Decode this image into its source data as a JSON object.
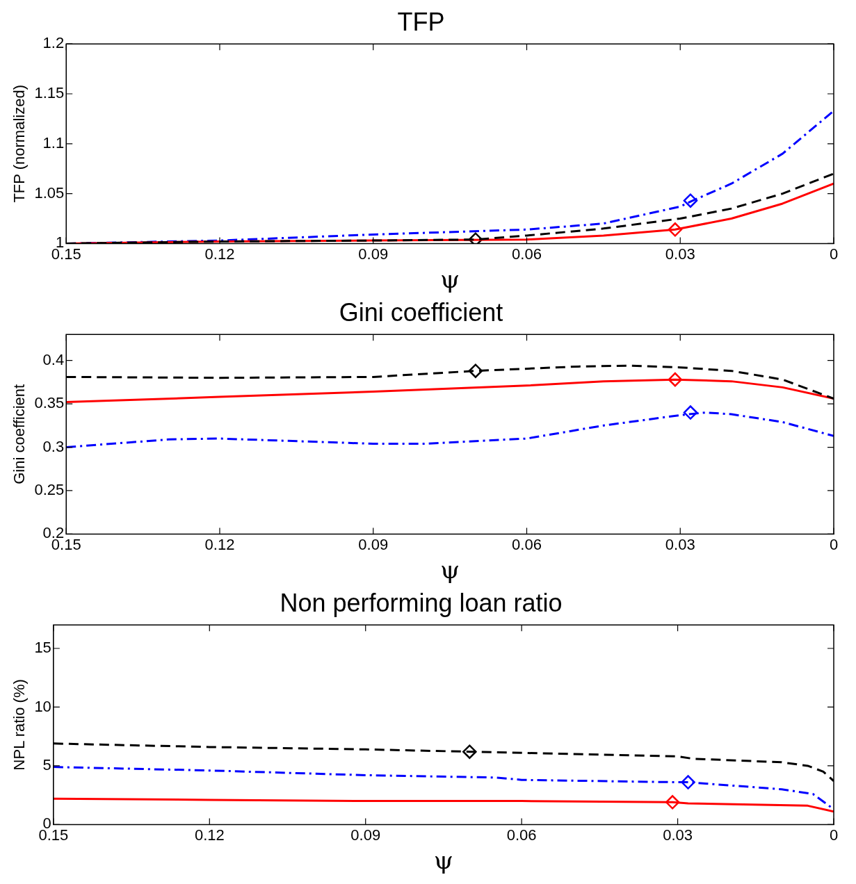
{
  "chart_data": [
    {
      "type": "line",
      "title": "TFP",
      "xlabel": "ψ",
      "ylabel": "TFP (normalized)",
      "xlim": [
        0.15,
        0
      ],
      "xticks": [
        0.15,
        0.12,
        0.09,
        0.06,
        0.03,
        0
      ],
      "ylim": [
        1,
        1.2
      ],
      "yticks": [
        1,
        1.05,
        1.1,
        1.15,
        1.2
      ],
      "grid": false,
      "legend": false,
      "series": [
        {
          "color": "#000000",
          "line_style": "dashed",
          "marker": "none",
          "x": [
            0.15,
            0.12,
            0.09,
            0.07,
            0.06,
            0.045,
            0.03,
            0.02,
            0.01,
            0
          ],
          "values": [
            1.0,
            1.002,
            1.003,
            1.004,
            1.008,
            1.015,
            1.025,
            1.035,
            1.05,
            1.07
          ]
        },
        {
          "color": "#ff0000",
          "line_style": "solid",
          "marker": "none",
          "x": [
            0.15,
            0.12,
            0.09,
            0.06,
            0.045,
            0.031,
            0.02,
            0.01,
            0
          ],
          "values": [
            1.0,
            1.002,
            1.003,
            1.004,
            1.008,
            1.014,
            1.025,
            1.04,
            1.06
          ]
        },
        {
          "color": "#0000ff",
          "line_style": "dashdot",
          "marker": "none",
          "x": [
            0.15,
            0.12,
            0.09,
            0.06,
            0.045,
            0.03,
            0.028,
            0.02,
            0.01,
            0
          ],
          "values": [
            1.0,
            1.003,
            1.009,
            1.014,
            1.02,
            1.037,
            1.042,
            1.06,
            1.09,
            1.133
          ]
        },
        {
          "type": "scatter",
          "color": "#000000",
          "marker": "diamond",
          "x": [
            0.07
          ],
          "values": [
            1.004
          ]
        },
        {
          "type": "scatter",
          "color": "#ff0000",
          "marker": "diamond",
          "x": [
            0.031
          ],
          "values": [
            1.014
          ]
        },
        {
          "type": "scatter",
          "color": "#0000ff",
          "marker": "diamond",
          "x": [
            0.028
          ],
          "values": [
            1.043
          ]
        }
      ]
    },
    {
      "type": "line",
      "title": "Gini coefficient",
      "xlabel": "ψ",
      "ylabel": "Gini coefficient",
      "xlim": [
        0.15,
        0
      ],
      "xticks": [
        0.15,
        0.12,
        0.09,
        0.06,
        0.03,
        0
      ],
      "ylim": [
        0.2,
        0.43
      ],
      "yticks": [
        0.2,
        0.25,
        0.3,
        0.35,
        0.4
      ],
      "grid": false,
      "legend": false,
      "series": [
        {
          "color": "#000000",
          "line_style": "dashed",
          "marker": "none",
          "x": [
            0.15,
            0.12,
            0.09,
            0.07,
            0.05,
            0.04,
            0.03,
            0.02,
            0.01,
            0
          ],
          "values": [
            0.381,
            0.38,
            0.381,
            0.388,
            0.393,
            0.394,
            0.392,
            0.388,
            0.378,
            0.356
          ]
        },
        {
          "color": "#ff0000",
          "line_style": "solid",
          "marker": "none",
          "x": [
            0.15,
            0.12,
            0.09,
            0.06,
            0.045,
            0.031,
            0.02,
            0.01,
            0
          ],
          "values": [
            0.352,
            0.358,
            0.364,
            0.371,
            0.376,
            0.378,
            0.376,
            0.369,
            0.356
          ]
        },
        {
          "color": "#0000ff",
          "line_style": "dashdot",
          "marker": "none",
          "x": [
            0.15,
            0.13,
            0.12,
            0.1,
            0.09,
            0.08,
            0.06,
            0.045,
            0.03,
            0.025,
            0.02,
            0.01,
            0
          ],
          "values": [
            0.3,
            0.309,
            0.31,
            0.306,
            0.304,
            0.304,
            0.31,
            0.325,
            0.337,
            0.34,
            0.338,
            0.329,
            0.313
          ]
        },
        {
          "type": "scatter",
          "color": "#000000",
          "marker": "diamond",
          "x": [
            0.07
          ],
          "values": [
            0.388
          ]
        },
        {
          "type": "scatter",
          "color": "#ff0000",
          "marker": "diamond",
          "x": [
            0.031
          ],
          "values": [
            0.378
          ]
        },
        {
          "type": "scatter",
          "color": "#0000ff",
          "marker": "diamond",
          "x": [
            0.028
          ],
          "values": [
            0.34
          ]
        }
      ]
    },
    {
      "type": "line",
      "title": "Non performing loan ratio",
      "xlabel": "ψ",
      "ylabel": "NPL ratio (%)",
      "xlim": [
        0.15,
        0
      ],
      "xticks": [
        0.15,
        0.12,
        0.09,
        0.06,
        0.03,
        0
      ],
      "ylim": [
        0,
        17
      ],
      "yticks": [
        0,
        5,
        10,
        15
      ],
      "grid": false,
      "legend": false,
      "series": [
        {
          "color": "#000000",
          "line_style": "dashed",
          "marker": "none",
          "x": [
            0.15,
            0.12,
            0.09,
            0.07,
            0.06,
            0.03,
            0.027,
            0.01,
            0.005,
            0.002,
            0
          ],
          "values": [
            6.9,
            6.6,
            6.4,
            6.2,
            6.1,
            5.8,
            5.6,
            5.3,
            5.0,
            4.5,
            3.7
          ]
        },
        {
          "color": "#ff0000",
          "line_style": "solid",
          "marker": "none",
          "x": [
            0.15,
            0.12,
            0.09,
            0.06,
            0.031,
            0.028,
            0.005,
            0
          ],
          "values": [
            2.2,
            2.1,
            2.0,
            2.0,
            1.9,
            1.8,
            1.6,
            1.1
          ]
        },
        {
          "color": "#0000ff",
          "line_style": "dashdot",
          "marker": "none",
          "x": [
            0.15,
            0.12,
            0.09,
            0.065,
            0.06,
            0.03,
            0.028,
            0.01,
            0.004,
            0
          ],
          "values": [
            4.9,
            4.6,
            4.2,
            4.0,
            3.8,
            3.6,
            3.6,
            3.0,
            2.6,
            1.3
          ]
        },
        {
          "type": "scatter",
          "color": "#000000",
          "marker": "diamond",
          "x": [
            0.07
          ],
          "values": [
            6.2
          ]
        },
        {
          "type": "scatter",
          "color": "#ff0000",
          "marker": "diamond",
          "x": [
            0.031
          ],
          "values": [
            1.9
          ]
        },
        {
          "type": "scatter",
          "color": "#0000ff",
          "marker": "diamond",
          "x": [
            0.028
          ],
          "values": [
            3.6
          ]
        }
      ]
    }
  ]
}
